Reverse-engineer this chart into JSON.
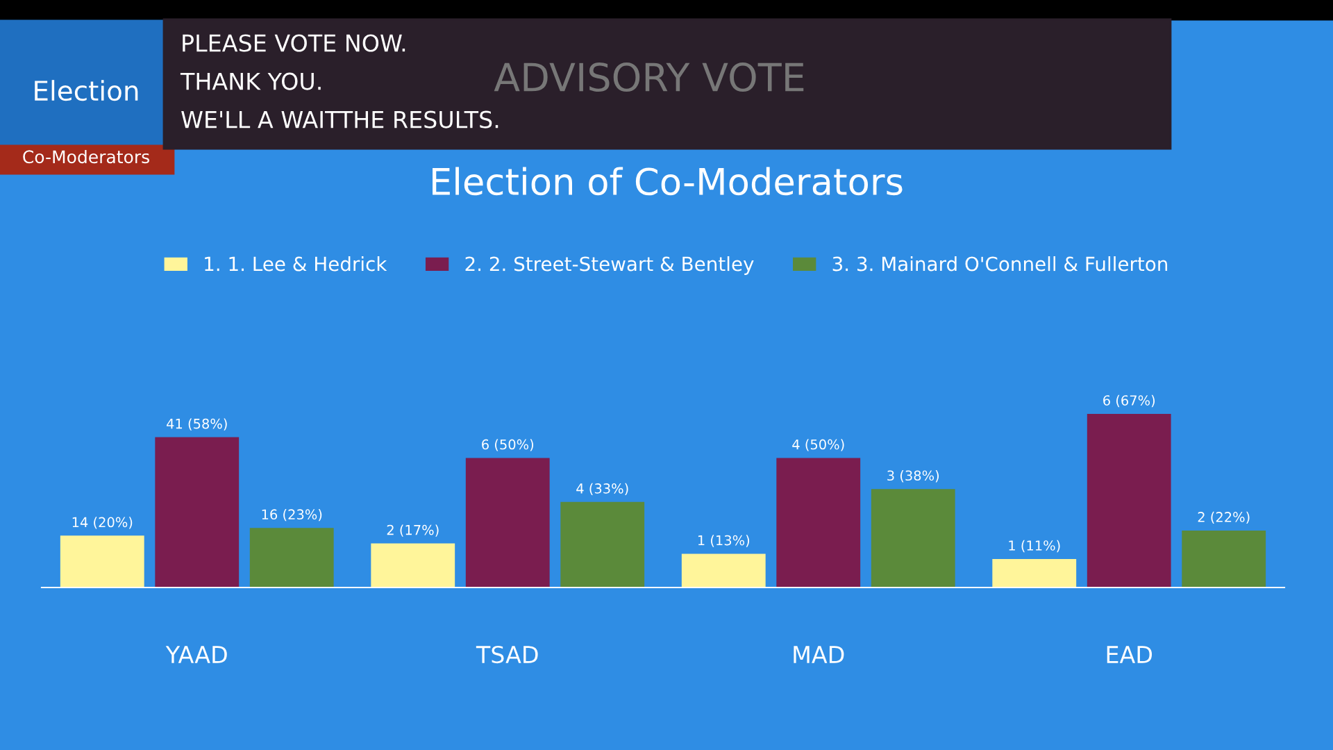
{
  "chart_data": {
    "type": "bar",
    "title": "Election of Co-Moderators",
    "categories": [
      "YAAD",
      "TSAD",
      "MAD",
      "EAD"
    ],
    "series": [
      {
        "name": "1. 1. Lee & Hedrick",
        "color": "#fff59a",
        "values": [
          20,
          17,
          13,
          11
        ],
        "value_labels": [
          "14 (20%)",
          "2 (17%)",
          "1 (13%)",
          "1 (11%)"
        ]
      },
      {
        "name": "2. 2. Street-Stewart & Bentley",
        "color": "#7a1d4f",
        "values": [
          58,
          50,
          50,
          67
        ],
        "value_labels": [
          "41 (58%)",
          "6 (50%)",
          "4 (50%)",
          "6 (67%)"
        ]
      },
      {
        "name": "3. 3. Mainard O'Connell & Fullerton",
        "color": "#5b8a3a",
        "values": [
          23,
          33,
          38,
          22
        ],
        "value_labels": [
          "16 (23%)",
          "4 (33%)",
          "3 (38%)",
          "2 (22%)"
        ]
      }
    ],
    "legend": "top",
    "grid": false,
    "annotations": [
      "Election",
      "Co-Moderators",
      "PLEASE VOTE NOW.\nTHANK YOU.\nWE'LL A WAITTHE RESULTS.",
      "ADVISORY VOTE"
    ]
  }
}
